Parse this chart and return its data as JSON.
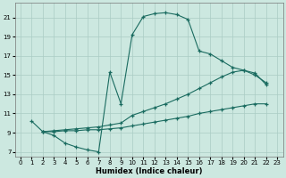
{
  "xlabel": "Humidex (Indice chaleur)",
  "bg_color": "#cce8e0",
  "grid_color": "#aaccC4",
  "line_color": "#1a6b60",
  "xlim": [
    -0.5,
    23.5
  ],
  "ylim": [
    6.5,
    22.5
  ],
  "xticks": [
    0,
    1,
    2,
    3,
    4,
    5,
    6,
    7,
    8,
    9,
    10,
    11,
    12,
    13,
    14,
    15,
    16,
    17,
    18,
    19,
    20,
    21,
    22,
    23
  ],
  "yticks": [
    7,
    9,
    11,
    13,
    15,
    17,
    19,
    21
  ],
  "line1_x": [
    1,
    2,
    3,
    4,
    5,
    6,
    7,
    8,
    9,
    10,
    11,
    12,
    13,
    14,
    15,
    16,
    17,
    18,
    19,
    20,
    21,
    22
  ],
  "line1_y": [
    10.2,
    9.1,
    8.7,
    7.9,
    7.5,
    7.2,
    7.0,
    15.3,
    12.0,
    19.2,
    21.1,
    21.4,
    21.5,
    21.3,
    20.8,
    17.5,
    17.2,
    16.5,
    15.8,
    15.5,
    15.0,
    14.2
  ],
  "line2_x": [
    2,
    3,
    4,
    5,
    6,
    7,
    8,
    9,
    10,
    11,
    12,
    13,
    14,
    15,
    16,
    17,
    18,
    19,
    20,
    21,
    22
  ],
  "line2_y": [
    9.1,
    9.2,
    9.3,
    9.4,
    9.5,
    9.6,
    9.8,
    10.0,
    10.8,
    11.2,
    11.6,
    12.0,
    12.5,
    13.0,
    13.6,
    14.2,
    14.8,
    15.3,
    15.5,
    15.2,
    14.0
  ],
  "line3_x": [
    2,
    3,
    4,
    5,
    6,
    7,
    8,
    9,
    10,
    11,
    12,
    13,
    14,
    15,
    16,
    17,
    18,
    19,
    20,
    21,
    22
  ],
  "line3_y": [
    9.1,
    9.1,
    9.2,
    9.2,
    9.3,
    9.3,
    9.4,
    9.5,
    9.7,
    9.9,
    10.1,
    10.3,
    10.5,
    10.7,
    11.0,
    11.2,
    11.4,
    11.6,
    11.8,
    12.0,
    12.0
  ]
}
